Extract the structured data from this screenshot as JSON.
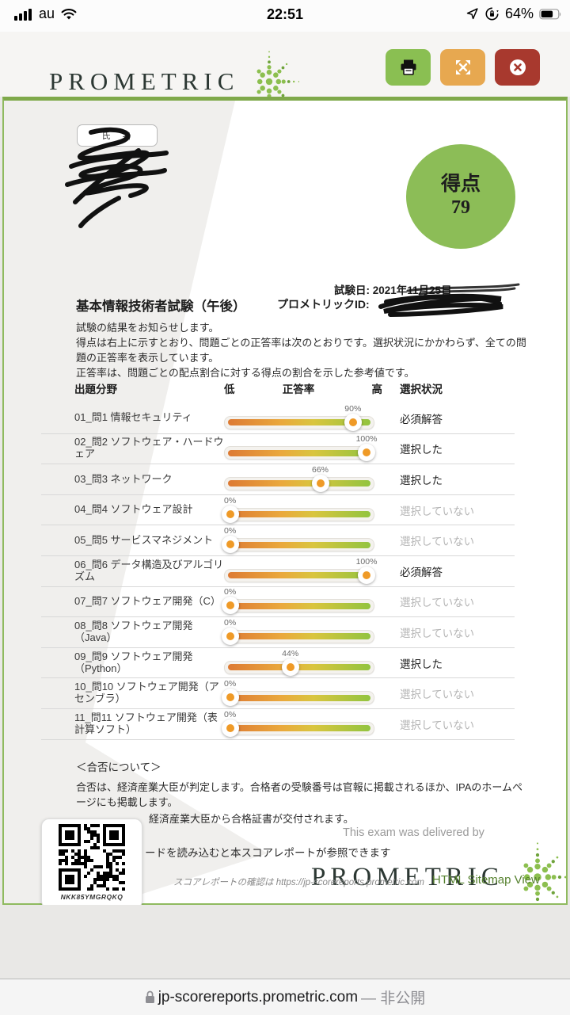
{
  "status_bar": {
    "carrier": "au",
    "time": "22:51",
    "battery_percent": "64%"
  },
  "header": {
    "brand": "PROMETRIC",
    "print_button": "print",
    "expand_button": "expand",
    "close_button": "close"
  },
  "report": {
    "name_label": "氏　名",
    "score_label": "得点",
    "score_value": "79",
    "exam_date_line": "試験日: 2021年11月25日",
    "exam_title": "基本情報技術者試験（午後）",
    "prometric_id_label": "プロメトリックID:",
    "intro_lines": [
      "試験の結果をお知らせします。",
      "得点は右上に示すとおり、問題ごとの正答率は次のとおりです。選択状況にかかわらず、全ての問題の正答率を表示しています。",
      "正答率は、問題ごとの配点割合に対する得点の割合を示した参考値です。"
    ],
    "table": {
      "headers": {
        "category": "出題分野",
        "low": "低",
        "rate": "正答率",
        "high": "高",
        "selection": "選択状況"
      },
      "rows": [
        {
          "category": "01_問1 情報セキュリティ",
          "rate": 90,
          "rate_label": "90%",
          "selection": "必須解答",
          "muted": false
        },
        {
          "category": "02_問2 ソフトウェア・ハードウェア",
          "rate": 100,
          "rate_label": "100%",
          "selection": "選択した",
          "muted": false
        },
        {
          "category": "03_問3 ネットワーク",
          "rate": 66,
          "rate_label": "66%",
          "selection": "選択した",
          "muted": false
        },
        {
          "category": "04_問4 ソフトウェア設計",
          "rate": 0,
          "rate_label": "0%",
          "selection": "選択していない",
          "muted": true
        },
        {
          "category": "05_問5 サービスマネジメント",
          "rate": 0,
          "rate_label": "0%",
          "selection": "選択していない",
          "muted": true
        },
        {
          "category": "06_問6 データ構造及びアルゴリズム",
          "rate": 100,
          "rate_label": "100%",
          "selection": "必須解答",
          "muted": false
        },
        {
          "category": "07_問7 ソフトウェア開発（C）",
          "rate": 0,
          "rate_label": "0%",
          "selection": "選択していない",
          "muted": true
        },
        {
          "category": "08_問8 ソフトウェア開発（Java）",
          "rate": 0,
          "rate_label": "0%",
          "selection": "選択していない",
          "muted": true
        },
        {
          "category": "09_問9 ソフトウェア開発（Python）",
          "rate": 44,
          "rate_label": "44%",
          "selection": "選択した",
          "muted": false
        },
        {
          "category": "10_問10 ソフトウェア開発（アセンブラ）",
          "rate": 0,
          "rate_label": "0%",
          "selection": "選択していない",
          "muted": true
        },
        {
          "category": "11_問11 ソフトウェア開発（表計算ソフト）",
          "rate": 0,
          "rate_label": "0%",
          "selection": "選択していない",
          "muted": true
        }
      ]
    },
    "footer": {
      "passfail_title": "＜合否について＞",
      "passfail_text": "合否は、経済産業大臣が判定します。合格者の受験番号は官報に掲載されるほか、IPAのホームページにも掲載します。",
      "passfail_text2": "経済産業大臣から合格証書が交付されます。",
      "qr_caption": "NKK85YMGRQKQ",
      "qr_note": "ードを読み込むと本スコアレポートが参照できます",
      "delivered_by": "This exam was delivered by",
      "brand": "PROMETRIC",
      "confirm_note": "スコアレポートの確認は https://jp-scorereports.prometric.com",
      "sitemap_link": "HTML Sitemap View"
    }
  },
  "browser_bar": {
    "url": "jp-scorereports.prometric.com",
    "privacy": "— 非公開"
  },
  "colors": {
    "accent_green": "#8cbd57",
    "border_green": "#8fba5f",
    "button_green": "#8abf52",
    "button_orange": "#e7a850",
    "button_red": "#a8392e",
    "bar_orange": "#dd7a33",
    "bar_green_end": "#92c43f",
    "knob_dot": "#ef9a27",
    "muted_text": "#b5b5b5",
    "sitemap_green": "#55812e"
  }
}
